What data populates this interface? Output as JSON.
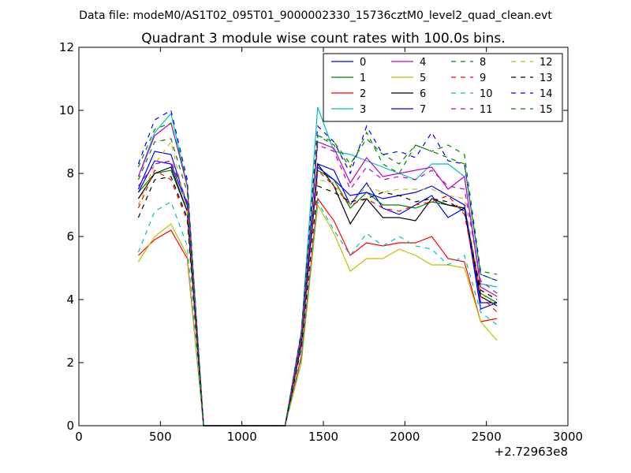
{
  "suptitle": "Data file: modeM0/AS1T02_095T01_9000002330_15736cztM0_level2_quad_clean.evt",
  "chart_data": {
    "type": "line",
    "title": "Quadrant 3 module wise count rates with 100.0s bins.",
    "xlabel": "",
    "ylabel": "",
    "x_offset_label": "+2.72963e8",
    "xlim": [
      0,
      3000
    ],
    "ylim": [
      0,
      12
    ],
    "xticks": [
      "0",
      "500",
      "1000",
      "1500",
      "2000",
      "2500",
      "3000"
    ],
    "yticks": [
      "0",
      "2",
      "4",
      "6",
      "8",
      "10",
      "12"
    ],
    "grid": false,
    "legend_position": "top-right",
    "x": [
      365,
      465,
      565,
      665,
      765,
      865,
      965,
      1065,
      1165,
      1265,
      1365,
      1465,
      1565,
      1665,
      1765,
      1865,
      1965,
      2065,
      2165,
      2265,
      2365,
      2465,
      2565
    ],
    "series": [
      {
        "name": "0",
        "color": "#0000ff",
        "dash": false,
        "values": [
          7.5,
          8.7,
          8.6,
          7.0,
          0,
          0,
          0,
          0,
          0,
          0,
          2.8,
          8.3,
          8.1,
          7.0,
          7.7,
          6.9,
          6.7,
          7.0,
          7.3,
          6.6,
          6.9,
          3.7,
          3.9
        ]
      },
      {
        "name": "1",
        "color": "#008000",
        "dash": false,
        "values": [
          7.4,
          8.0,
          8.1,
          6.8,
          0,
          0,
          0,
          0,
          0,
          0,
          2.6,
          8.1,
          7.8,
          6.9,
          7.4,
          7.0,
          7.0,
          6.9,
          7.1,
          7.0,
          6.9,
          4.2,
          3.9
        ]
      },
      {
        "name": "2",
        "color": "#ff0000",
        "dash": false,
        "values": [
          5.4,
          5.9,
          6.2,
          5.3,
          0,
          0,
          0,
          0,
          0,
          0,
          2.2,
          7.2,
          6.5,
          5.4,
          5.8,
          5.7,
          5.8,
          5.8,
          6.0,
          5.3,
          5.2,
          3.3,
          3.4
        ]
      },
      {
        "name": "3",
        "color": "#00bfbf",
        "dash": false,
        "values": [
          7.9,
          9.3,
          9.9,
          7.6,
          0,
          0,
          0,
          0,
          0,
          0,
          3.0,
          10.1,
          8.7,
          8.6,
          8.4,
          8.2,
          8.0,
          7.8,
          8.3,
          8.3,
          7.9,
          4.5,
          4.4
        ]
      },
      {
        "name": "4",
        "color": "#bf00bf",
        "dash": false,
        "values": [
          7.9,
          9.2,
          9.6,
          7.6,
          0,
          0,
          0,
          0,
          0,
          0,
          2.9,
          9.0,
          8.8,
          7.7,
          8.5,
          7.9,
          8.0,
          8.1,
          8.2,
          7.5,
          7.9,
          4.4,
          4.1
        ]
      },
      {
        "name": "5",
        "color": "#bfbf00",
        "dash": false,
        "values": [
          5.2,
          6.0,
          6.4,
          5.4,
          0,
          0,
          0,
          0,
          0,
          0,
          2.0,
          7.0,
          6.1,
          4.9,
          5.3,
          5.3,
          5.6,
          5.4,
          5.1,
          5.1,
          5.0,
          3.3,
          2.7
        ]
      },
      {
        "name": "6",
        "color": "#000000",
        "dash": false,
        "values": [
          7.2,
          8.0,
          8.2,
          6.8,
          0,
          0,
          0,
          0,
          0,
          0,
          2.6,
          8.3,
          7.6,
          6.4,
          7.2,
          6.6,
          6.6,
          6.5,
          7.2,
          7.0,
          6.9,
          4.1,
          3.8
        ]
      },
      {
        "name": "7",
        "color": "#0000ff",
        "dash": false,
        "values": [
          7.4,
          8.4,
          8.3,
          7.0,
          0,
          0,
          0,
          0,
          0,
          0,
          2.7,
          8.2,
          7.8,
          7.3,
          7.4,
          7.2,
          7.3,
          7.4,
          7.6,
          7.3,
          7.0,
          3.9,
          3.9
        ]
      },
      {
        "name": "8",
        "color": "#008000",
        "dash": true,
        "values": [
          7.8,
          9.0,
          9.1,
          7.4,
          0,
          0,
          0,
          0,
          0,
          0,
          2.7,
          9.2,
          8.9,
          8.2,
          9.3,
          8.3,
          8.0,
          8.9,
          8.7,
          8.9,
          8.6,
          4.9,
          4.8
        ]
      },
      {
        "name": "9",
        "color": "#ff0000",
        "dash": true,
        "values": [
          6.9,
          8.1,
          7.8,
          6.5,
          0,
          0,
          0,
          0,
          0,
          0,
          2.5,
          8.1,
          7.6,
          7.0,
          7.2,
          6.9,
          6.8,
          7.0,
          7.1,
          7.3,
          6.7,
          4.1,
          3.6
        ]
      },
      {
        "name": "10",
        "color": "#00bfbf",
        "dash": true,
        "values": [
          5.5,
          6.8,
          7.1,
          5.7,
          0,
          0,
          0,
          0,
          0,
          0,
          2.1,
          7.1,
          6.2,
          5.4,
          6.1,
          5.7,
          6.0,
          5.7,
          5.6,
          5.1,
          5.4,
          3.6,
          3.2
        ]
      },
      {
        "name": "11",
        "color": "#bf00bf",
        "dash": true,
        "values": [
          7.6,
          8.3,
          8.4,
          7.1,
          0,
          0,
          0,
          0,
          0,
          0,
          2.7,
          8.9,
          8.7,
          7.5,
          8.2,
          7.8,
          7.9,
          7.8,
          8.1,
          7.6,
          7.5,
          4.6,
          4.2
        ]
      },
      {
        "name": "12",
        "color": "#bfbf00",
        "dash": true,
        "values": [
          7.0,
          8.3,
          9.0,
          6.8,
          0,
          0,
          0,
          0,
          0,
          0,
          2.5,
          7.8,
          7.7,
          7.0,
          7.6,
          7.4,
          7.5,
          7.5,
          7.5,
          7.3,
          7.2,
          4.2,
          3.8
        ]
      },
      {
        "name": "13",
        "color": "#000000",
        "dash": true,
        "values": [
          6.6,
          7.8,
          7.9,
          6.6,
          0,
          0,
          0,
          0,
          0,
          0,
          2.5,
          7.6,
          7.4,
          7.1,
          7.2,
          7.4,
          7.3,
          7.1,
          7.2,
          7.1,
          6.8,
          4.3,
          4.0
        ]
      },
      {
        "name": "14",
        "color": "#0000ff",
        "dash": true,
        "values": [
          8.3,
          9.7,
          10.0,
          7.8,
          0,
          0,
          0,
          0,
          0,
          0,
          3.0,
          9.5,
          9.0,
          8.0,
          9.5,
          8.6,
          8.7,
          8.5,
          9.3,
          8.4,
          8.3,
          4.8,
          4.6
        ]
      },
      {
        "name": "15",
        "color": "#008000",
        "dash": true,
        "values": [
          8.2,
          9.4,
          9.6,
          7.7,
          0,
          0,
          0,
          0,
          0,
          0,
          2.9,
          9.2,
          9.0,
          8.3,
          9.1,
          8.6,
          8.3,
          8.9,
          8.7,
          8.5,
          8.3,
          4.8,
          4.6
        ]
      }
    ]
  }
}
